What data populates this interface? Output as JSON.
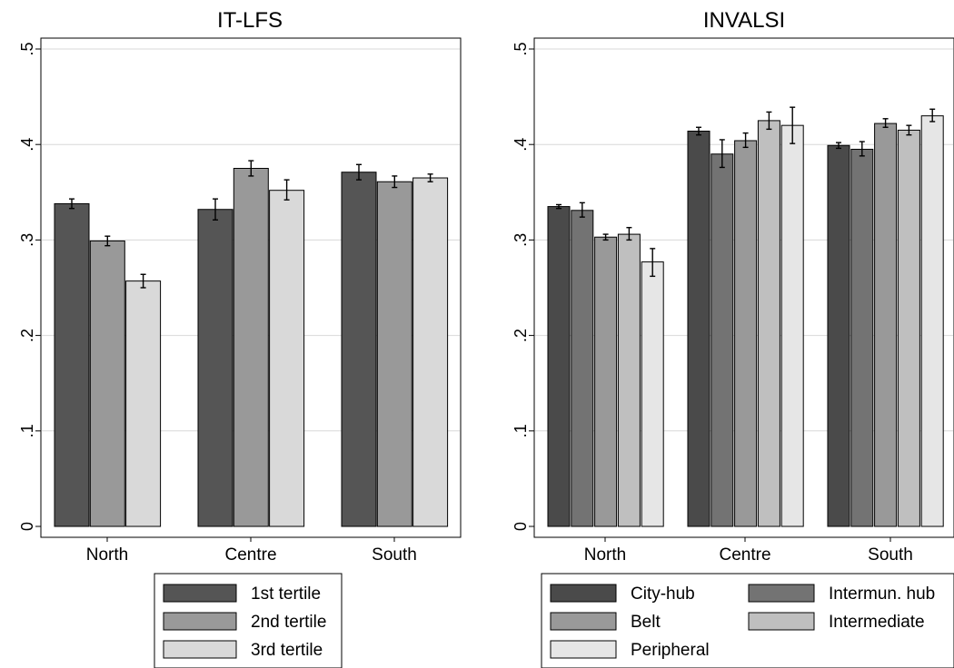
{
  "chart_data": [
    {
      "type": "bar",
      "title": "IT-LFS",
      "categories": [
        "North",
        "Centre",
        "South"
      ],
      "ylim": [
        0,
        0.5
      ],
      "yticks": [
        0,
        0.1,
        0.2,
        0.3,
        0.4,
        0.5
      ],
      "ytick_labels": [
        "0",
        ".1",
        ".2",
        ".3",
        ".4",
        ".5"
      ],
      "grid": true,
      "legend_position": "bottom",
      "series": [
        {
          "name": "1st tertile",
          "color": "#555555",
          "values": [
            0.338,
            0.332,
            0.371
          ],
          "err_low": [
            0.333,
            0.321,
            0.363
          ],
          "err_high": [
            0.343,
            0.343,
            0.379
          ]
        },
        {
          "name": "2nd tertile",
          "color": "#999999",
          "values": [
            0.299,
            0.375,
            0.361
          ],
          "err_low": [
            0.294,
            0.367,
            0.355
          ],
          "err_high": [
            0.304,
            0.383,
            0.367
          ]
        },
        {
          "name": "3rd tertile",
          "color": "#d9d9d9",
          "values": [
            0.257,
            0.352,
            0.365
          ],
          "err_low": [
            0.25,
            0.342,
            0.361
          ],
          "err_high": [
            0.264,
            0.363,
            0.369
          ]
        }
      ]
    },
    {
      "type": "bar",
      "title": "INVALSI",
      "categories": [
        "North",
        "Centre",
        "South"
      ],
      "ylim": [
        0,
        0.5
      ],
      "yticks": [
        0,
        0.1,
        0.2,
        0.3,
        0.4,
        0.5
      ],
      "ytick_labels": [
        "0",
        ".1",
        ".2",
        ".3",
        ".4",
        ".5"
      ],
      "grid": true,
      "legend_position": "bottom",
      "series": [
        {
          "name": "City-hub",
          "color": "#4a4a4a",
          "values": [
            0.335,
            0.414,
            0.399
          ],
          "err_low": [
            0.333,
            0.41,
            0.396
          ],
          "err_high": [
            0.337,
            0.418,
            0.402
          ]
        },
        {
          "name": "Intermun. hub",
          "color": "#737373",
          "values": [
            0.331,
            0.39,
            0.395
          ],
          "err_low": [
            0.324,
            0.376,
            0.388
          ],
          "err_high": [
            0.339,
            0.405,
            0.403
          ]
        },
        {
          "name": "Belt",
          "color": "#999999",
          "values": [
            0.303,
            0.404,
            0.422
          ],
          "err_low": [
            0.3,
            0.397,
            0.418
          ],
          "err_high": [
            0.306,
            0.412,
            0.427
          ]
        },
        {
          "name": "Intermediate",
          "color": "#bfbfbf",
          "values": [
            0.306,
            0.425,
            0.415
          ],
          "err_low": [
            0.3,
            0.416,
            0.41
          ],
          "err_high": [
            0.313,
            0.434,
            0.42
          ]
        },
        {
          "name": "Peripheral",
          "color": "#e6e6e6",
          "values": [
            0.277,
            0.42,
            0.43
          ],
          "err_low": [
            0.262,
            0.401,
            0.424
          ],
          "err_high": [
            0.291,
            0.439,
            0.437
          ]
        }
      ]
    }
  ]
}
